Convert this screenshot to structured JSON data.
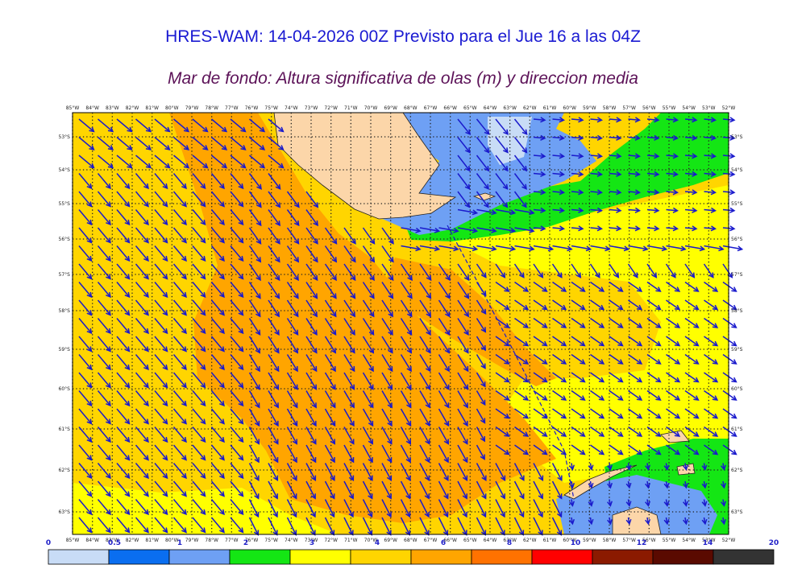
{
  "header": {
    "title": "HRES-WAM: 14-04-2026 00Z Previsto para el Jue 16 a las 04Z",
    "subtitle": "Mar de fondo: Altura significativa de olas (m) y direccion media"
  },
  "map": {
    "lon_labels": [
      "85°W",
      "84°W",
      "83°W",
      "82°W",
      "81°W",
      "80°W",
      "79°W",
      "78°W",
      "77°W",
      "76°W",
      "75°W",
      "74°W",
      "73°W",
      "72°W",
      "71°W",
      "70°W",
      "69°W",
      "68°W",
      "67°W",
      "66°W",
      "65°W",
      "64°W",
      "63°W",
      "62°W",
      "61°W",
      "60°W",
      "59°W",
      "58°W",
      "57°W",
      "56°W",
      "55°W",
      "54°W",
      "53°W",
      "52°W"
    ],
    "lat_labels": [
      "53°S",
      "54°S",
      "55°S",
      "56°S",
      "57°S",
      "58°S",
      "59°S",
      "60°S",
      "61°S",
      "62°S",
      "63°S"
    ],
    "arrow_color": "#1a1acc",
    "land_color": "#fcd6a9"
  },
  "colorbar": {
    "ticks": [
      "0",
      "0.5",
      "1",
      "2",
      "3",
      "4",
      "6",
      "8",
      "10",
      "12",
      "14",
      "20"
    ],
    "colors": [
      "#c8dcf6",
      "#0a6ef0",
      "#6ea0f4",
      "#14e614",
      "#ffff00",
      "#ffd500",
      "#ffa500",
      "#ff7200",
      "#ff0000",
      "#8b1a00",
      "#5a0a00",
      "#333333"
    ]
  }
}
